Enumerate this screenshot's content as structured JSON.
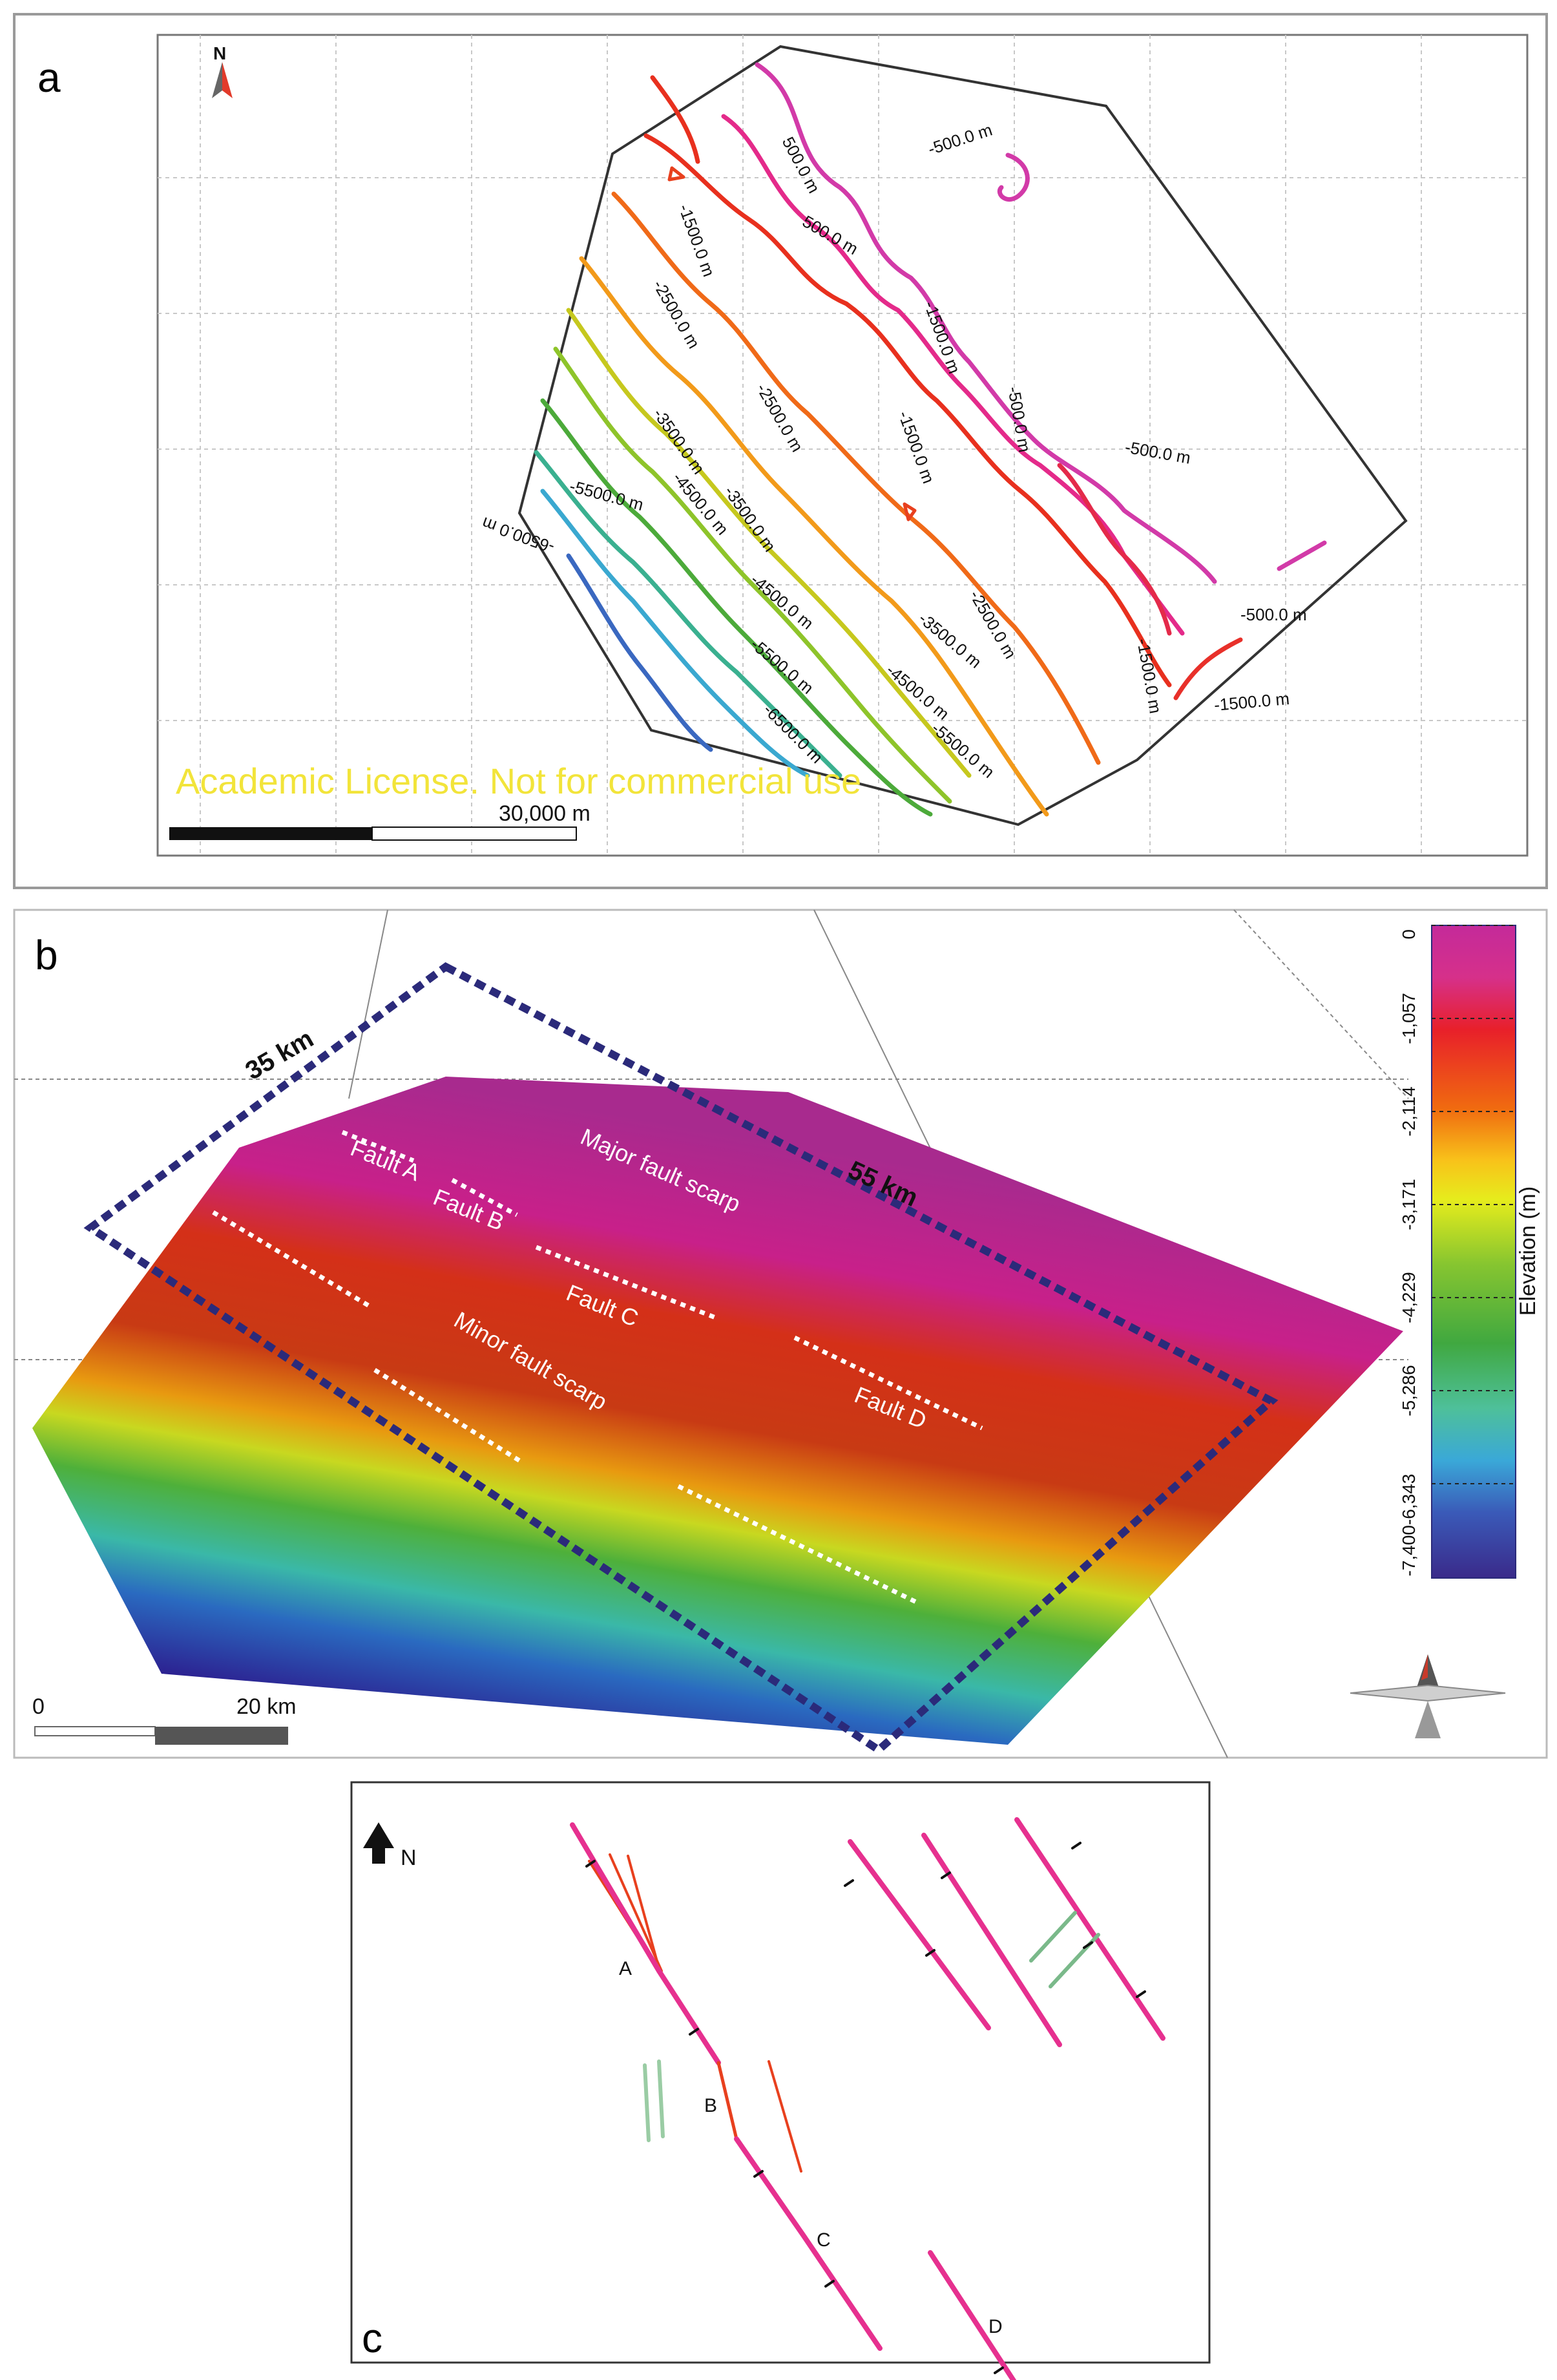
{
  "panels": {
    "a": {
      "letter": "a",
      "north": "N",
      "scale_label": "30,000 m",
      "watermark": "Academic License. Not for commercial use",
      "contour_labels": [
        "500.0 m",
        "-500.0 m",
        "500.0 m",
        "-1500.0 m",
        "-2500.0 m",
        "-3500.0 m",
        "-4500.0 m",
        "-5500.0 m",
        "-6500.0 m",
        "-1500.0 m",
        "-2500.0 m",
        "-3500.0 m",
        "-4500.0 m",
        "-5500.0 m",
        "-6500.0 m",
        "-500.0 m",
        "-1500.0 m",
        "-2500.0 m",
        "-3500.0 m",
        "-4500.0 m",
        "-5500.0 m",
        "-1500.0 m",
        "-500.0 m",
        "-1500.0 m",
        "-500.0 m"
      ]
    },
    "b": {
      "letter": "b",
      "dim_short": "35 km",
      "dim_long": "55 km",
      "labels": {
        "fault_a": "Fault A",
        "fault_b": "Fault B",
        "fault_c": "Fault C",
        "fault_d": "Fault D",
        "major": "Major fault scarp",
        "minor": "Minor fault scarp"
      },
      "scale_zero": "0",
      "scale_label": "20 km",
      "colorbar": {
        "title": "Elevation (m)",
        "ticks": [
          "0",
          "-1,057",
          "-2,114",
          "-3,171",
          "-4,229",
          "-5,286",
          "-7,400-6,343"
        ]
      }
    },
    "c": {
      "letter": "c",
      "north": "N",
      "fault_labels": [
        "A",
        "B",
        "C",
        "D"
      ]
    }
  },
  "colors": {
    "fault_magenta": "#e6308f",
    "fault_red": "#e8401e",
    "fault_green": "#7ab98a",
    "box_navy": "#2b2a7a"
  }
}
